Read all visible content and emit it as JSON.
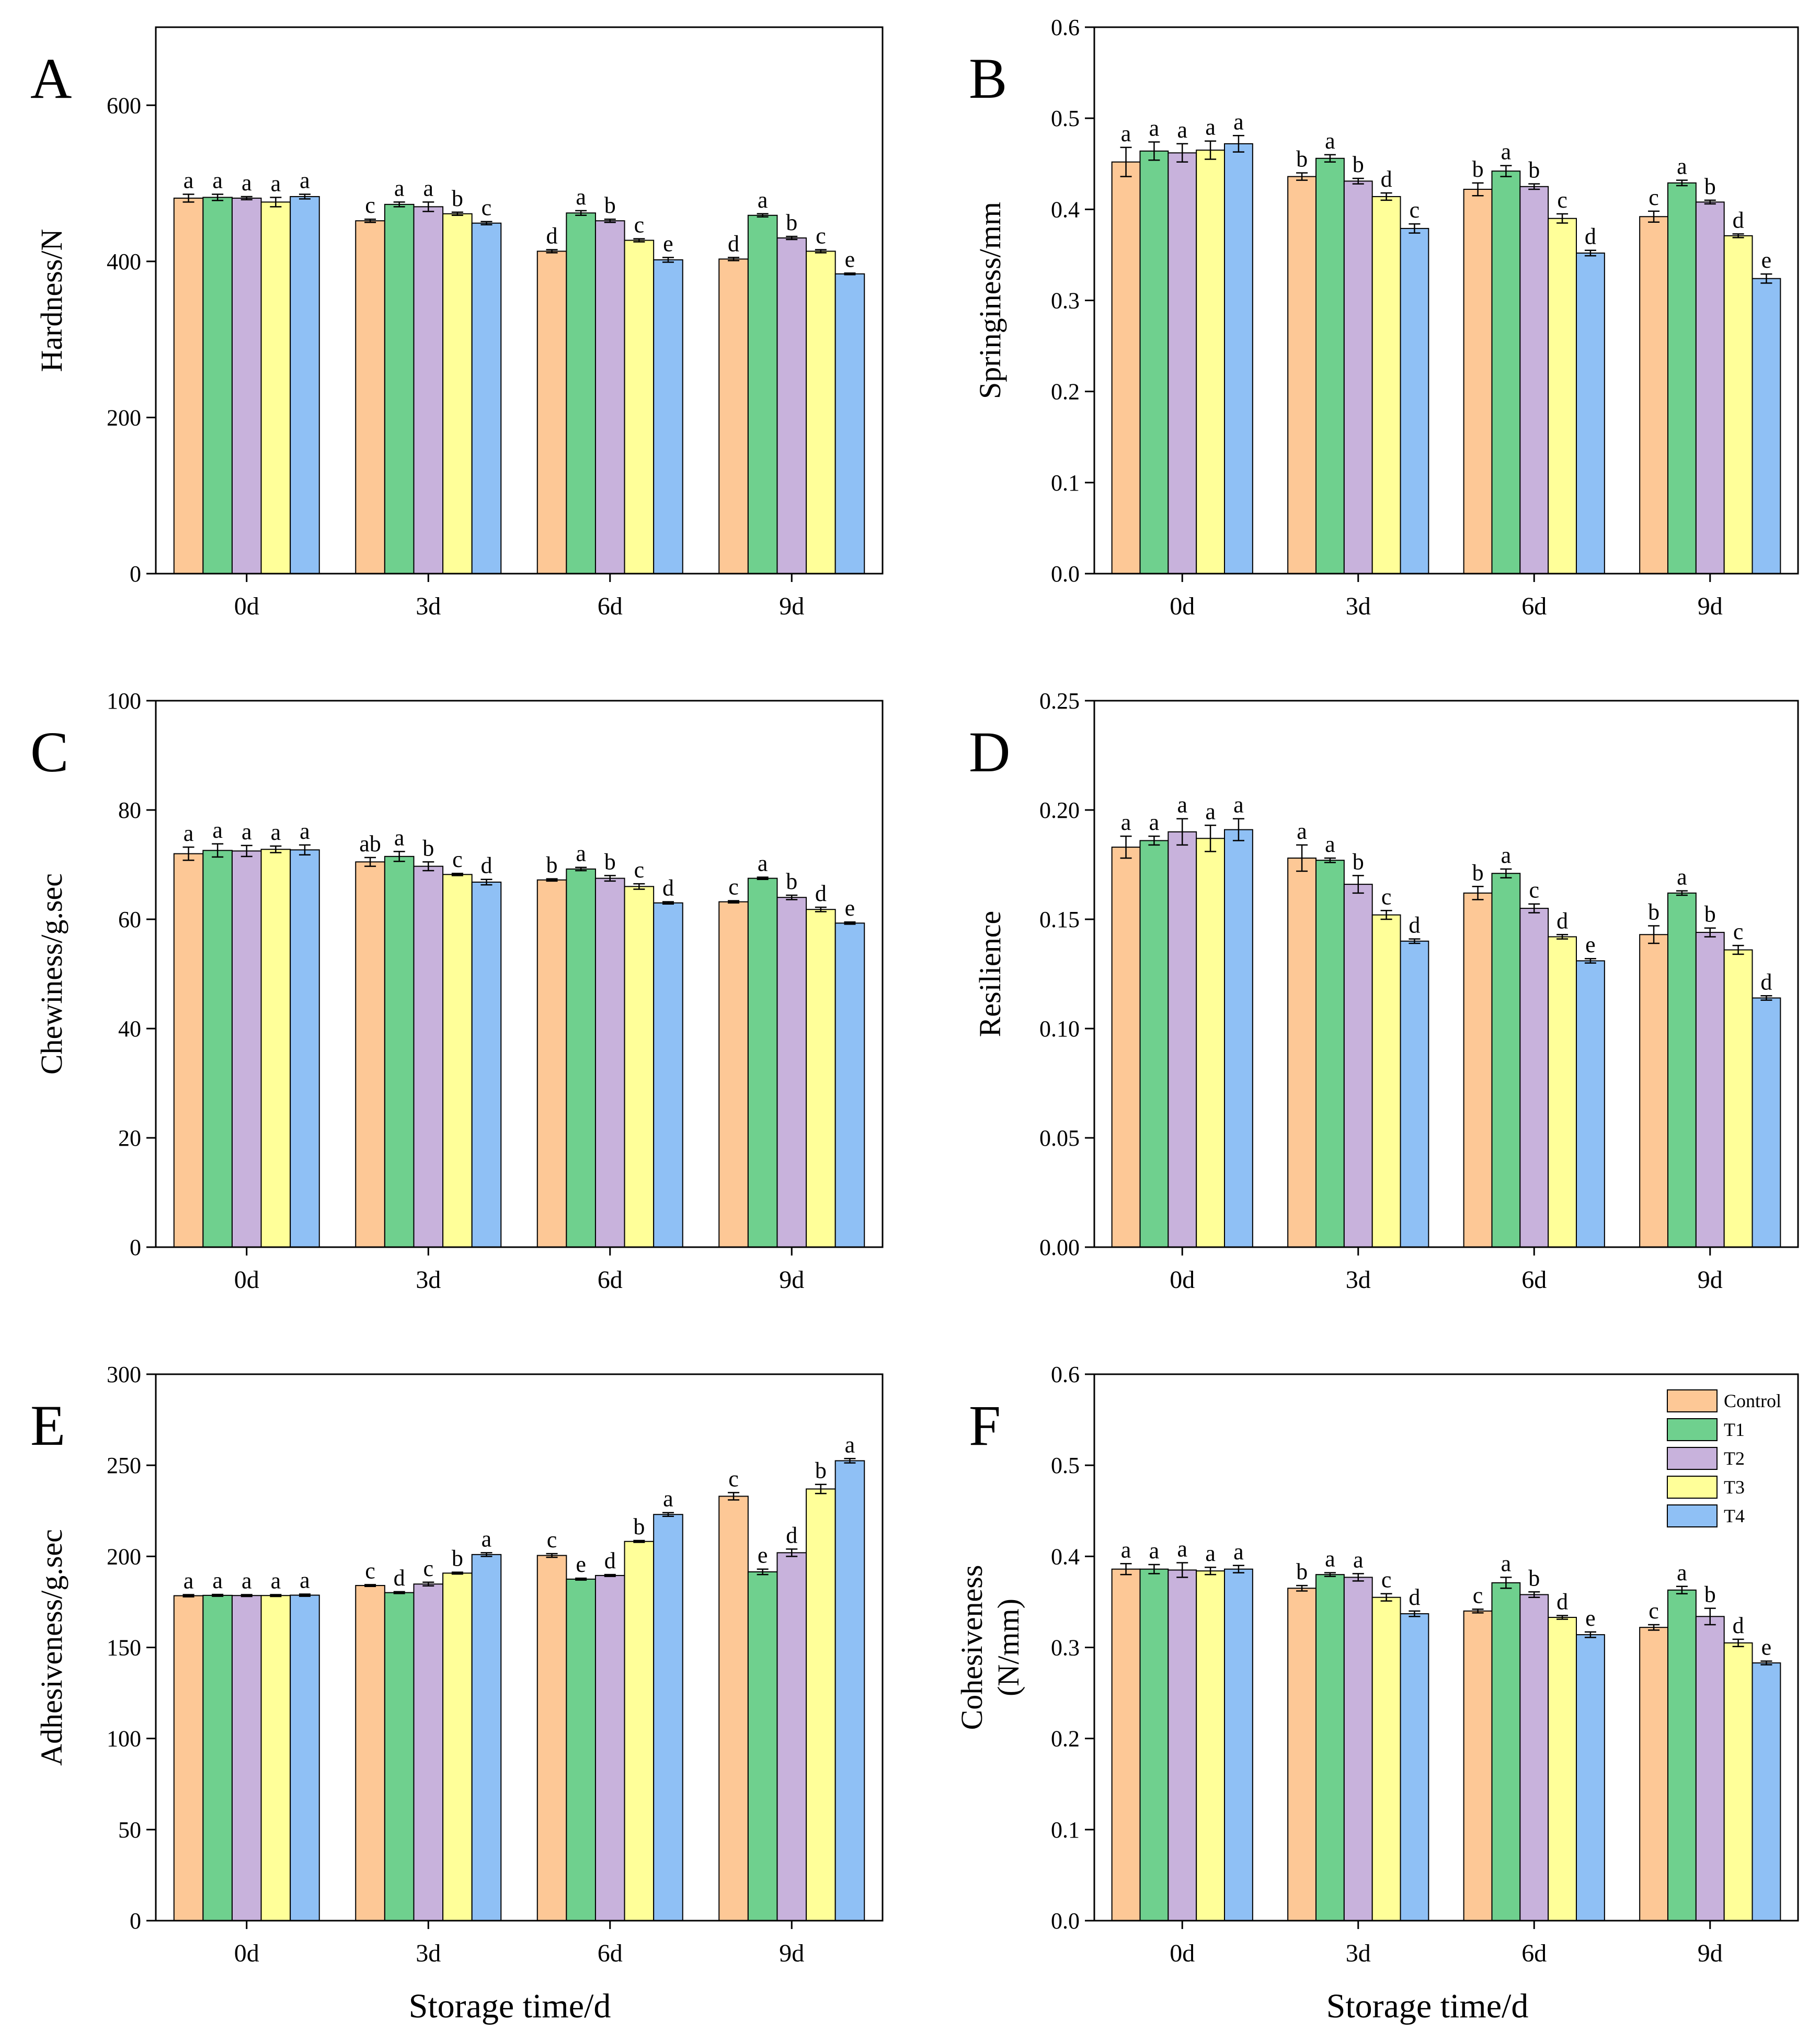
{
  "figure": {
    "x_title_left": "Storage time/d",
    "x_title_right": "Storage time/d"
  },
  "legend": [
    "Control",
    "T1",
    "T2",
    "T3",
    "T4"
  ],
  "colors": {
    "Control": "#FDC896",
    "T1": "#6FD08E",
    "T2": "#C8B2DC",
    "T3": "#FFFF99",
    "T4": "#8FC0F5"
  },
  "chart_data": [
    {
      "panel": "A",
      "type": "bar",
      "ylabel": [
        "Hardness/N"
      ],
      "ylim": [
        0,
        700
      ],
      "yticks": [
        0,
        200,
        400,
        600
      ],
      "yticklabels": [
        "0",
        "200",
        "400",
        "600"
      ],
      "categories": [
        "0d",
        "3d",
        "6d",
        "9d"
      ],
      "series": [
        {
          "name": "Control",
          "values": [
            481,
            452,
            413,
            403
          ],
          "errors": [
            5,
            2,
            2,
            2
          ],
          "letters": [
            "a",
            "c",
            "d",
            "d"
          ]
        },
        {
          "name": "T1",
          "values": [
            482,
            473,
            462,
            459
          ],
          "errors": [
            4,
            3,
            3,
            2
          ],
          "letters": [
            "a",
            "a",
            "a",
            "a"
          ]
        },
        {
          "name": "T2",
          "values": [
            481,
            470,
            452,
            430
          ],
          "errors": [
            2,
            6,
            2,
            2
          ],
          "letters": [
            "a",
            "a",
            "b",
            "b"
          ]
        },
        {
          "name": "T3",
          "values": [
            476,
            461,
            427,
            413
          ],
          "errors": [
            6,
            2,
            2,
            2
          ],
          "letters": [
            "a",
            "b",
            "c",
            "c"
          ]
        },
        {
          "name": "T4",
          "values": [
            483,
            449,
            402,
            384
          ],
          "errors": [
            3,
            2,
            3,
            1
          ],
          "letters": [
            "a",
            "c",
            "e",
            "e"
          ]
        }
      ]
    },
    {
      "panel": "B",
      "type": "bar",
      "ylabel": [
        "Springiness/mm"
      ],
      "ylim": [
        0,
        0.6
      ],
      "yticks": [
        0,
        0.1,
        0.2,
        0.3,
        0.4,
        0.5,
        0.6
      ],
      "yticklabels": [
        "0.0",
        "0.1",
        "0.2",
        "0.3",
        "0.4",
        "0.5",
        "0.6"
      ],
      "categories": [
        "0d",
        "3d",
        "6d",
        "9d"
      ],
      "series": [
        {
          "name": "Control",
          "values": [
            0.452,
            0.436,
            0.422,
            0.392
          ],
          "errors": [
            0.016,
            0.004,
            0.007,
            0.006
          ],
          "letters": [
            "a",
            "b",
            "b",
            "c"
          ]
        },
        {
          "name": "T1",
          "values": [
            0.464,
            0.456,
            0.442,
            0.429
          ],
          "errors": [
            0.01,
            0.004,
            0.006,
            0.003
          ],
          "letters": [
            "a",
            "a",
            "a",
            "a"
          ]
        },
        {
          "name": "T2",
          "values": [
            0.462,
            0.431,
            0.425,
            0.408
          ],
          "errors": [
            0.01,
            0.003,
            0.003,
            0.002
          ],
          "letters": [
            "a",
            "b",
            "b",
            "b"
          ]
        },
        {
          "name": "T3",
          "values": [
            0.465,
            0.414,
            0.39,
            0.371
          ],
          "errors": [
            0.01,
            0.004,
            0.005,
            0.002
          ],
          "letters": [
            "a",
            "d",
            "c",
            "d"
          ]
        },
        {
          "name": "T4",
          "values": [
            0.472,
            0.379,
            0.352,
            0.324
          ],
          "errors": [
            0.009,
            0.005,
            0.003,
            0.005
          ],
          "letters": [
            "a",
            "c",
            "d",
            "e"
          ]
        }
      ]
    },
    {
      "panel": "C",
      "type": "bar",
      "ylabel": [
        "Chewiness/g.sec"
      ],
      "ylim": [
        0,
        100
      ],
      "yticks": [
        0,
        20,
        40,
        60,
        80,
        100
      ],
      "yticklabels": [
        "0",
        "20",
        "40",
        "60",
        "80",
        "100"
      ],
      "categories": [
        "0d",
        "3d",
        "6d",
        "9d"
      ],
      "series": [
        {
          "name": "Control",
          "values": [
            72.0,
            70.5,
            67.2,
            63.2
          ],
          "errors": [
            1.2,
            0.8,
            0.2,
            0.2
          ],
          "letters": [
            "a",
            "ab",
            "b",
            "c"
          ]
        },
        {
          "name": "T1",
          "values": [
            72.6,
            71.5,
            69.2,
            67.5
          ],
          "errors": [
            1.2,
            0.9,
            0.3,
            0.2
          ],
          "letters": [
            "a",
            "a",
            "a",
            "a"
          ]
        },
        {
          "name": "T2",
          "values": [
            72.5,
            69.7,
            67.5,
            64.0
          ],
          "errors": [
            1.0,
            0.8,
            0.5,
            0.4
          ],
          "letters": [
            "a",
            "b",
            "b",
            "b"
          ]
        },
        {
          "name": "T3",
          "values": [
            72.8,
            68.2,
            66.0,
            61.8
          ],
          "errors": [
            0.6,
            0.2,
            0.5,
            0.4
          ],
          "letters": [
            "a",
            "c",
            "c",
            "d"
          ]
        },
        {
          "name": "T4",
          "values": [
            72.7,
            66.8,
            63.0,
            59.3
          ],
          "errors": [
            0.9,
            0.5,
            0.2,
            0.2
          ],
          "letters": [
            "a",
            "d",
            "d",
            "e"
          ]
        }
      ]
    },
    {
      "panel": "D",
      "type": "bar",
      "ylabel": [
        "Resilience"
      ],
      "ylim": [
        0,
        0.25
      ],
      "yticks": [
        0,
        0.05,
        0.1,
        0.15,
        0.2,
        0.25
      ],
      "yticklabels": [
        "0.00",
        "0.05",
        "0.10",
        "0.15",
        "0.20",
        "0.25"
      ],
      "categories": [
        "0d",
        "3d",
        "6d",
        "9d"
      ],
      "series": [
        {
          "name": "Control",
          "values": [
            0.183,
            0.178,
            0.162,
            0.143
          ],
          "errors": [
            0.005,
            0.006,
            0.003,
            0.004
          ],
          "letters": [
            "a",
            "a",
            "b",
            "b"
          ]
        },
        {
          "name": "T1",
          "values": [
            0.186,
            0.177,
            0.171,
            0.162
          ],
          "errors": [
            0.002,
            0.001,
            0.002,
            0.001
          ],
          "letters": [
            "a",
            "a",
            "a",
            "a"
          ]
        },
        {
          "name": "T2",
          "values": [
            0.19,
            0.166,
            0.155,
            0.144
          ],
          "errors": [
            0.006,
            0.004,
            0.002,
            0.002
          ],
          "letters": [
            "a",
            "b",
            "c",
            "b"
          ]
        },
        {
          "name": "T3",
          "values": [
            0.187,
            0.152,
            0.142,
            0.136
          ],
          "errors": [
            0.006,
            0.002,
            0.001,
            0.002
          ],
          "letters": [
            "a",
            "c",
            "d",
            "c"
          ]
        },
        {
          "name": "T4",
          "values": [
            0.191,
            0.14,
            0.131,
            0.114
          ],
          "errors": [
            0.005,
            0.001,
            0.001,
            0.001
          ],
          "letters": [
            "a",
            "d",
            "e",
            "d"
          ]
        }
      ]
    },
    {
      "panel": "E",
      "type": "bar",
      "ylabel": [
        "Adhesiveness/g.sec"
      ],
      "ylim": [
        0,
        300
      ],
      "yticks": [
        0,
        50,
        100,
        150,
        200,
        250,
        300
      ],
      "yticklabels": [
        "0",
        "50",
        "100",
        "150",
        "200",
        "250",
        "300"
      ],
      "categories": [
        "0d",
        "3d",
        "6d",
        "9d"
      ],
      "series": [
        {
          "name": "Control",
          "values": [
            178.4,
            184.0,
            200.5,
            233.0
          ],
          "errors": [
            0.6,
            0.5,
            1.0,
            2.0
          ],
          "letters": [
            "a",
            "c",
            "c",
            "c"
          ]
        },
        {
          "name": "T1",
          "values": [
            178.6,
            180.1,
            187.5,
            191.5
          ],
          "errors": [
            0.5,
            0.5,
            0.5,
            1.5
          ],
          "letters": [
            "a",
            "d",
            "e",
            "e"
          ]
        },
        {
          "name": "T2",
          "values": [
            178.5,
            184.8,
            189.5,
            202.0
          ],
          "errors": [
            0.5,
            1.0,
            0.5,
            2.0
          ],
          "letters": [
            "a",
            "c",
            "d",
            "d"
          ]
        },
        {
          "name": "T3",
          "values": [
            178.5,
            190.8,
            208.2,
            237.0
          ],
          "errors": [
            0.5,
            0.5,
            0.5,
            2.5
          ],
          "letters": [
            "a",
            "b",
            "b",
            "b"
          ]
        },
        {
          "name": "T4",
          "values": [
            178.7,
            201.0,
            223.0,
            252.5
          ],
          "errors": [
            0.6,
            1.0,
            1.0,
            1.2
          ],
          "letters": [
            "a",
            "a",
            "a",
            "a"
          ]
        }
      ]
    },
    {
      "panel": "F",
      "type": "bar",
      "ylabel": [
        "Cohesiveness",
        "(N/mm)"
      ],
      "ylim": [
        0,
        0.6
      ],
      "yticks": [
        0,
        0.1,
        0.2,
        0.3,
        0.4,
        0.5,
        0.6
      ],
      "yticklabels": [
        "0.0",
        "0.1",
        "0.2",
        "0.3",
        "0.4",
        "0.5",
        "0.6"
      ],
      "categories": [
        "0d",
        "3d",
        "6d",
        "9d"
      ],
      "legend_position": "top-right",
      "series": [
        {
          "name": "Control",
          "values": [
            0.386,
            0.365,
            0.34,
            0.322
          ],
          "errors": [
            0.006,
            0.003,
            0.002,
            0.003
          ],
          "letters": [
            "a",
            "b",
            "c",
            "c"
          ]
        },
        {
          "name": "T1",
          "values": [
            0.386,
            0.38,
            0.371,
            0.363
          ],
          "errors": [
            0.005,
            0.002,
            0.006,
            0.004
          ],
          "letters": [
            "a",
            "a",
            "a",
            "a"
          ]
        },
        {
          "name": "T2",
          "values": [
            0.385,
            0.377,
            0.358,
            0.334
          ],
          "errors": [
            0.008,
            0.004,
            0.003,
            0.009
          ],
          "letters": [
            "a",
            "a",
            "b",
            "b"
          ]
        },
        {
          "name": "T3",
          "values": [
            0.384,
            0.355,
            0.333,
            0.305
          ],
          "errors": [
            0.004,
            0.004,
            0.002,
            0.004
          ],
          "letters": [
            "a",
            "c",
            "d",
            "d"
          ]
        },
        {
          "name": "T4",
          "values": [
            0.386,
            0.337,
            0.314,
            0.283
          ],
          "errors": [
            0.004,
            0.003,
            0.003,
            0.002
          ],
          "letters": [
            "a",
            "d",
            "e",
            "e"
          ]
        }
      ]
    }
  ]
}
